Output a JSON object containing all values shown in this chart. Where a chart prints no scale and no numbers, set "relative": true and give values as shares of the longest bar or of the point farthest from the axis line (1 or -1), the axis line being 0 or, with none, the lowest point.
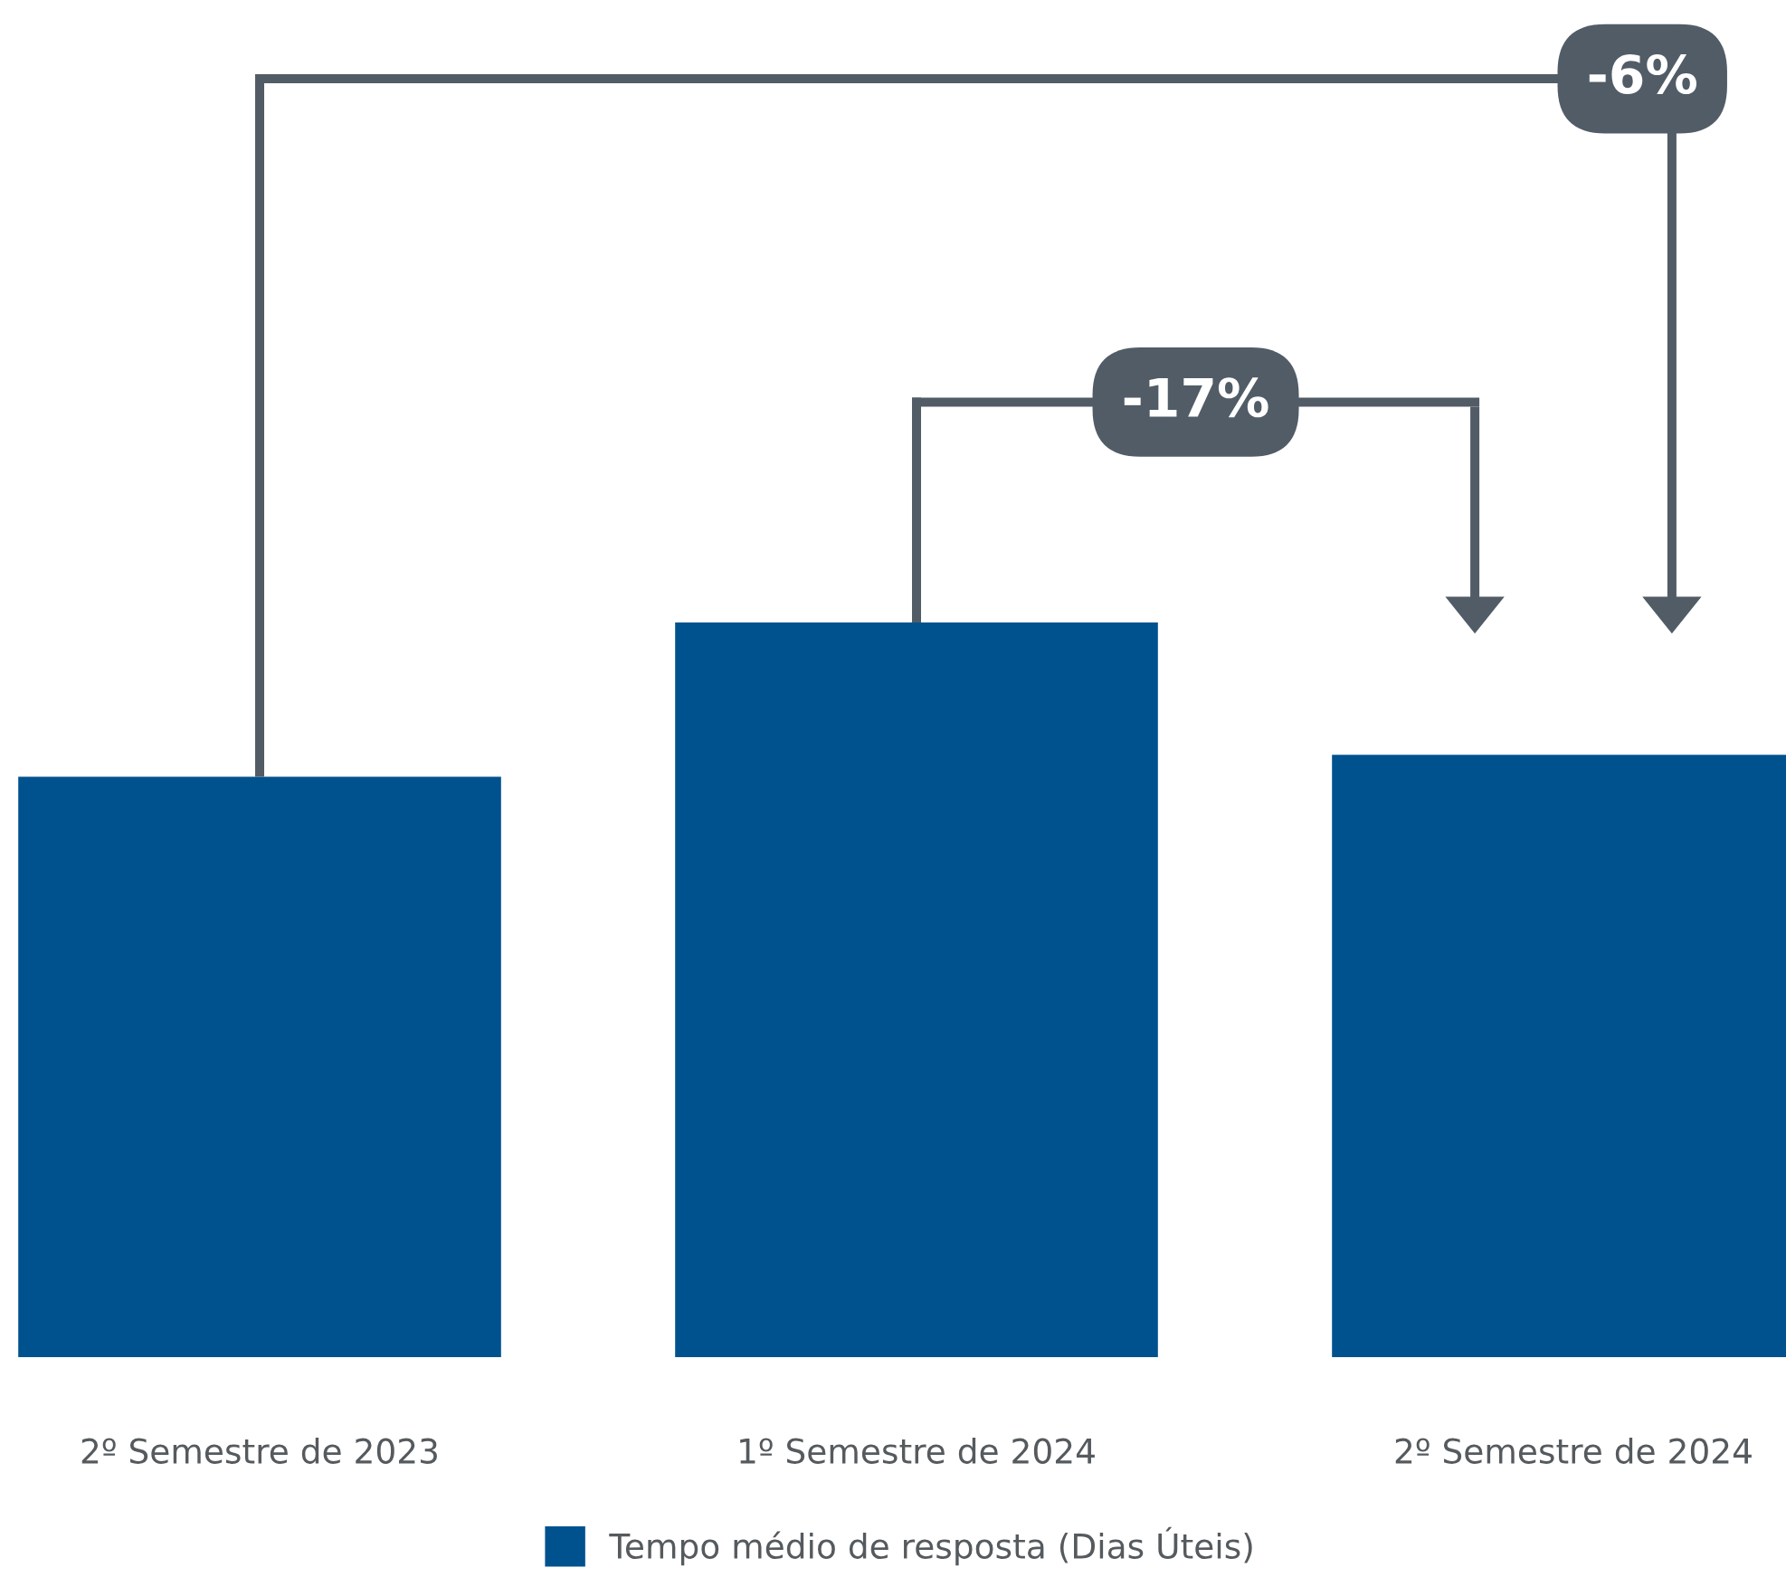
{
  "chart_data": {
    "type": "bar",
    "relative": true,
    "categories": [
      "2º Semestre de 2023",
      "1º Semestre de 2024",
      "2º Semestre de 2024"
    ],
    "series": [
      {
        "name": "Tempo médio de resposta (Dias Úteis)",
        "color": "#00528f",
        "values": [
          0.79,
          1,
          0.82
        ]
      }
    ],
    "annotations": [
      "-6%",
      "-17%"
    ],
    "legend": "bottom",
    "grid": false
  }
}
